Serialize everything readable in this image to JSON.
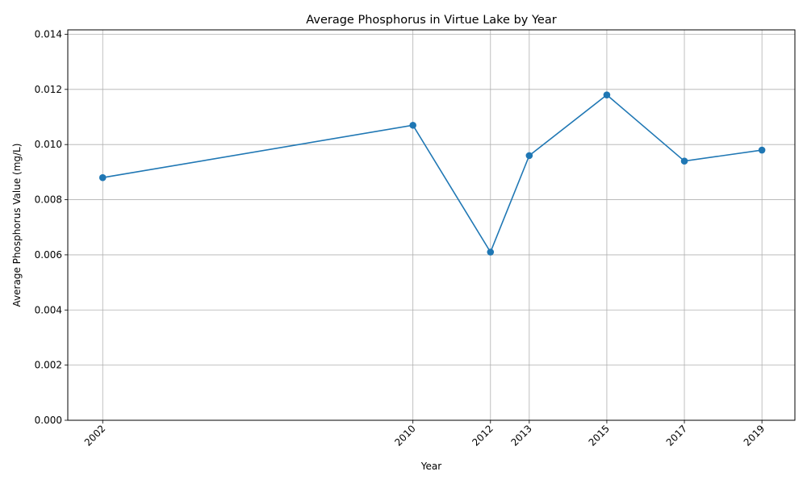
{
  "chart_data": {
    "type": "line",
    "title": "Average Phosphorus in Virtue Lake by Year",
    "xlabel": "Year",
    "ylabel": "Average Phosphorus Value (mg/L)",
    "x": [
      2002,
      2010,
      2012,
      2013,
      2015,
      2017,
      2019
    ],
    "x_tick_labels": [
      "2002",
      "2010",
      "2012",
      "2013",
      "2015",
      "2017",
      "2019"
    ],
    "series": [
      {
        "values": [
          0.0088,
          0.0107,
          0.0061,
          0.0096,
          0.0118,
          0.0094,
          0.0098
        ]
      }
    ],
    "xlim": [
      2001.1,
      2019.85
    ],
    "ylim": [
      0,
      0.01416
    ],
    "y_ticks": [
      0,
      0.002,
      0.004,
      0.006,
      0.008,
      0.01,
      0.012,
      0.014
    ],
    "y_tick_labels": [
      "0.000",
      "0.002",
      "0.004",
      "0.006",
      "0.008",
      "0.010",
      "0.012",
      "0.014"
    ],
    "grid": true,
    "marker": "circle",
    "line_color": "#1f77b4",
    "grid_color": "#b0b0b0"
  }
}
